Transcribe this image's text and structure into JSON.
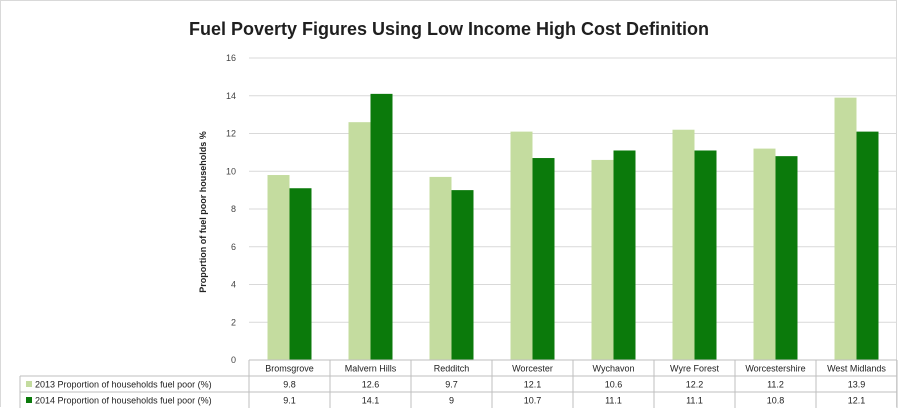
{
  "chart_data": {
    "type": "bar",
    "title": "Fuel Poverty Figures Using Low Income High Cost Definition",
    "ylabel": "Proportion of fuel poor households %",
    "xlabel": "",
    "ylim": [
      0,
      16
    ],
    "yticks": [
      0,
      2,
      4,
      6,
      8,
      10,
      12,
      14,
      16
    ],
    "grid": true,
    "legend": "data-table-left",
    "categories": [
      "Bromsgrove",
      "Malvern Hills",
      "Redditch",
      "Worcester",
      "Wychavon",
      "Wyre Forest",
      "Worcestershire",
      "West Midlands"
    ],
    "series": [
      {
        "name": "2013 Proportion of households fuel poor (%)",
        "color": "#c4dc9f",
        "values": [
          9.8,
          12.6,
          9.7,
          12.1,
          10.6,
          12.2,
          11.2,
          13.9
        ],
        "labels": [
          "9.8",
          "12.6",
          "9.7",
          "12.1",
          "10.6",
          "12.2",
          "11.2",
          "13.9"
        ]
      },
      {
        "name": "2014 Proportion of households fuel poor (%)",
        "color": "#0b7a0b",
        "values": [
          9.1,
          14.1,
          9,
          10.7,
          11.1,
          11.1,
          10.8,
          12.1
        ],
        "labels": [
          "9.1",
          "14.1",
          "9",
          "10.7",
          "11.1",
          "11.1",
          "10.8",
          "12.1"
        ]
      }
    ]
  }
}
